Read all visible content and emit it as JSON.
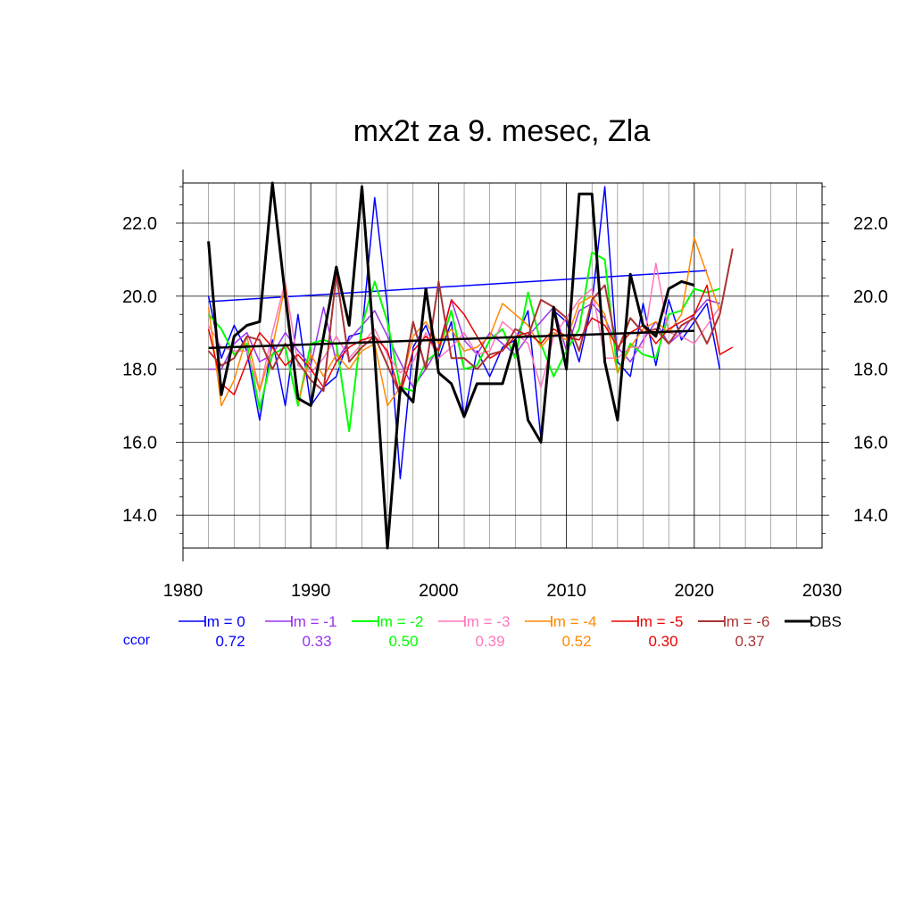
{
  "chart_data": {
    "type": "line",
    "title": "mx2t za 9. mesec, Zla",
    "xlabel": "",
    "ylabel": "",
    "xlim": [
      1980,
      2030
    ],
    "ylim": [
      13.1,
      23.1
    ],
    "x_ticks": [
      1980,
      1990,
      2000,
      2010,
      2020,
      2030
    ],
    "x_tick_labels": [
      "1980",
      "1990",
      "2000",
      "2010",
      "2020",
      "2030"
    ],
    "y_ticks": [
      14,
      16,
      18,
      20,
      22
    ],
    "y_tick_labels": [
      "14.0",
      "16.0",
      "18.0",
      "20.0",
      "22.0"
    ],
    "grid": true,
    "legend_position": "bottom",
    "ccor_label": "ccor",
    "series": [
      {
        "name": "lm = 0",
        "color": "#0000ff",
        "ccor": "0.72",
        "stroke_width": 1.5,
        "x_start": 1982,
        "values": [
          20.0,
          18.3,
          19.2,
          18.5,
          16.6,
          18.8,
          17.0,
          19.5,
          17.0,
          17.5,
          17.8,
          18.9,
          19.0,
          22.7,
          19.7,
          15.0,
          18.6,
          19.2,
          18.3,
          19.3,
          16.7,
          18.5,
          17.8,
          18.6,
          18.8,
          19.6,
          16.1,
          19.6,
          19.3,
          18.2,
          19.8,
          23.0,
          18.2,
          17.8,
          19.8,
          18.1,
          19.9,
          18.8,
          19.3,
          19.8,
          18.0
        ],
        "trend": [
          [
            1982,
            19.85
          ],
          [
            2021,
            20.7
          ]
        ]
      },
      {
        "name": "lm = -1",
        "color": "#9933ee",
        "ccor": "0.33",
        "stroke_width": 1.5,
        "x_start": 1982,
        "values": [
          18.0,
          18.0,
          18.7,
          19.0,
          18.2,
          18.4,
          19.0,
          18.5,
          18.1,
          19.7,
          18.2,
          18.8,
          19.2,
          19.6,
          18.9,
          18.2,
          17.5,
          18.0,
          18.6,
          19.9,
          18.8,
          18.4,
          19.0,
          18.7,
          18.4,
          18.9,
          19.3,
          19.7,
          18.5,
          19.6,
          19.8,
          19.4,
          18.6,
          18.2,
          18.8,
          19.3,
          18.7,
          19.0,
          19.5,
          19.9,
          19.8
        ]
      },
      {
        "name": "lm = -2",
        "color": "#00ff00",
        "ccor": "0.50",
        "stroke_width": 2,
        "x_start": 1982,
        "values": [
          19.5,
          19.1,
          18.4,
          18.7,
          16.9,
          18.4,
          18.6,
          17.0,
          18.7,
          18.8,
          18.7,
          16.3,
          19.2,
          20.4,
          19.3,
          17.5,
          17.4,
          18.2,
          18.5,
          19.6,
          18.0,
          18.1,
          18.8,
          19.1,
          18.3,
          20.1,
          18.7,
          17.8,
          18.5,
          19.1,
          21.2,
          21.0,
          17.9,
          18.7,
          18.4,
          18.3,
          19.5,
          19.6,
          20.2,
          20.1,
          20.2
        ]
      },
      {
        "name": "lm = -3",
        "color": "#ff77bb",
        "ccor": "0.39",
        "stroke_width": 1.5,
        "x_start": 1982,
        "values": [
          19.2,
          18.6,
          18.5,
          18.5,
          17.4,
          19.0,
          20.4,
          18.1,
          17.9,
          18.3,
          18.9,
          18.3,
          18.7,
          19.1,
          18.4,
          17.9,
          18.2,
          19.0,
          18.3,
          18.6,
          19.0,
          18.4,
          18.5,
          19.3,
          19.0,
          18.7,
          17.5,
          18.9,
          19.4,
          19.9,
          20.2,
          18.3,
          18.3,
          18.6,
          18.6,
          20.9,
          19.0,
          18.9,
          18.7,
          19.2,
          19.7
        ]
      },
      {
        "name": "lm = -4",
        "color": "#ff8800",
        "ccor": "0.52",
        "stroke_width": 1.5,
        "x_start": 1982,
        "values": [
          19.7,
          17.0,
          17.7,
          18.9,
          17.4,
          18.6,
          20.3,
          17.1,
          18.4,
          17.8,
          18.4,
          18.0,
          18.5,
          18.7,
          17.0,
          17.5,
          18.9,
          19.3,
          18.7,
          19.1,
          18.5,
          18.6,
          18.9,
          19.8,
          19.5,
          19.2,
          18.6,
          19.0,
          18.8,
          19.8,
          20.0,
          19.5,
          17.9,
          18.6,
          19.1,
          19.3,
          19.0,
          19.5,
          21.6,
          20.6,
          19.6
        ]
      },
      {
        "name": "lm = -5",
        "color": "#ee0000",
        "ccor": "0.30",
        "stroke_width": 1.5,
        "x_start": 1982,
        "values": [
          19.1,
          17.6,
          17.3,
          18.2,
          19.0,
          18.6,
          18.1,
          18.4,
          18.0,
          17.5,
          18.2,
          18.6,
          18.8,
          18.9,
          18.5,
          17.3,
          18.5,
          18.9,
          18.5,
          19.9,
          19.5,
          18.9,
          18.3,
          18.5,
          18.9,
          19.0,
          18.7,
          19.1,
          18.9,
          18.8,
          19.4,
          19.2,
          18.6,
          19.0,
          19.2,
          18.7,
          19.1,
          19.3,
          19.5,
          20.3,
          18.4,
          18.6
        ]
      },
      {
        "name": "lm = -6",
        "color": "#aa3333",
        "ccor": "0.37",
        "stroke_width": 2,
        "x_start": 1982,
        "values": [
          18.5,
          18.1,
          18.3,
          18.9,
          18.8,
          18.0,
          18.7,
          18.2,
          17.7,
          17.4,
          20.6,
          18.2,
          18.6,
          18.9,
          18.1,
          17.3,
          19.3,
          18.0,
          20.4,
          18.3,
          18.3,
          18.0,
          18.4,
          18.5,
          19.1,
          18.9,
          19.9,
          19.7,
          19.4,
          18.5,
          19.9,
          20.3,
          18.5,
          19.4,
          19.0,
          19.1,
          18.7,
          19.2,
          19.4,
          18.7,
          19.5,
          21.3
        ]
      },
      {
        "name": "OBS",
        "color": "#000000",
        "ccor": "",
        "stroke_width": 3,
        "x_start": 1982,
        "values": [
          21.5,
          17.3,
          18.9,
          19.2,
          19.3,
          23.1,
          20.0,
          17.2,
          17.0,
          18.9,
          20.8,
          19.2,
          23.0,
          18.4,
          13.1,
          17.5,
          17.1,
          20.2,
          17.9,
          17.6,
          16.7,
          17.6,
          17.6,
          17.6,
          18.8,
          16.6,
          16.0,
          19.7,
          18.0,
          22.8,
          22.8,
          18.2,
          16.6,
          20.6,
          19.2,
          18.9,
          20.2,
          20.4,
          20.3
        ],
        "trend": [
          [
            1982,
            18.58
          ],
          [
            2020,
            19.05
          ]
        ]
      }
    ]
  }
}
